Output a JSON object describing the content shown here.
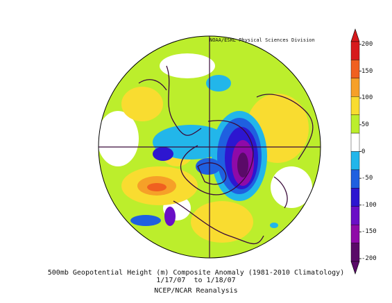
{
  "credit": "NOAA/ESRL Physical Sciences Division",
  "caption": {
    "line1": "500mb Geopotential Height (m) Composite Anomaly (1981-2010 Climatology)",
    "line2": "1/17/07  to 1/18/07",
    "line3": "NCEP/NCAR Reanalysis"
  },
  "colorbar": {
    "labels": [
      "200",
      "150",
      "100",
      "50",
      "0",
      "-50",
      "-100",
      "-150",
      "-200"
    ],
    "colors": [
      "#d7191c",
      "#f06020",
      "#f6a028",
      "#f9dc30",
      "#bcee2c",
      "#ffffff",
      "#22b6ea",
      "#1f60e0",
      "#2d16d0",
      "#6a0fc6",
      "#8f0aa8",
      "#5a0a68"
    ]
  },
  "icons": {
    "map": "polar-stereographic-map-icon",
    "colorbar": "colorbar-icon"
  }
}
